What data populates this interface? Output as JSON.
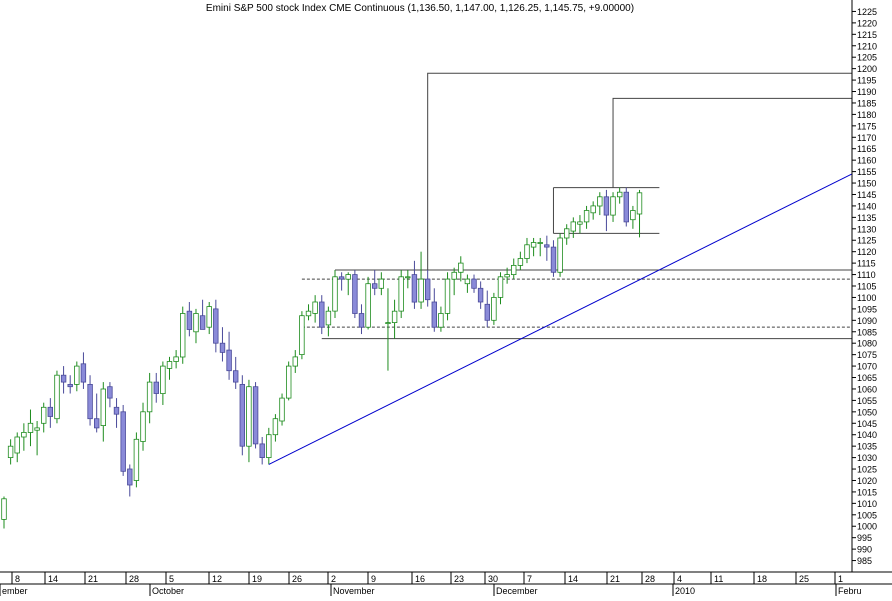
{
  "chart_data": {
    "type": "candlestick",
    "title": "Emini S&P 500 stock Index CME Continuous (1,136.50, 1,147.00, 1,126.25, 1,145.75, +9.00000)",
    "ylim": [
      980,
      1230
    ],
    "y_ticks": [
      985,
      990,
      995,
      1000,
      1005,
      1010,
      1015,
      1020,
      1025,
      1030,
      1035,
      1040,
      1045,
      1050,
      1055,
      1060,
      1065,
      1070,
      1075,
      1080,
      1085,
      1090,
      1095,
      1100,
      1105,
      1110,
      1115,
      1120,
      1125,
      1130,
      1135,
      1140,
      1145,
      1150,
      1155,
      1160,
      1165,
      1170,
      1175,
      1180,
      1185,
      1190,
      1195,
      1200,
      1205,
      1210,
      1215,
      1220,
      1225
    ],
    "x_day_ticks": [
      "8",
      "14",
      "21",
      "28",
      "5",
      "12",
      "19",
      "26",
      "2",
      "9",
      "16",
      "23",
      "30",
      "7",
      "14",
      "21",
      "28",
      "4",
      "11",
      "18",
      "25",
      "1"
    ],
    "x_month_labels": [
      "ember",
      "October",
      "November",
      "December",
      "2010",
      "Febru"
    ],
    "colors": {
      "up_body": "#ffffff",
      "up_edge": "#1e8c1e",
      "down_body": "#8a8ad8",
      "down_edge": "#4a4a9a",
      "trendline": "#0000cc",
      "box": "#444444",
      "axis": "#000000"
    },
    "grid": false,
    "candles": [
      {
        "o": 1003,
        "h": 1013,
        "l": 999,
        "c": 1012
      },
      {
        "o": 1030,
        "h": 1038,
        "l": 1027,
        "c": 1035
      },
      {
        "o": 1032,
        "h": 1041,
        "l": 1028,
        "c": 1039
      },
      {
        "o": 1039,
        "h": 1045,
        "l": 1033,
        "c": 1041
      },
      {
        "o": 1041,
        "h": 1051,
        "l": 1035,
        "c": 1045
      },
      {
        "o": 1042,
        "h": 1046,
        "l": 1031,
        "c": 1043
      },
      {
        "o": 1045,
        "h": 1054,
        "l": 1041,
        "c": 1052
      },
      {
        "o": 1052,
        "h": 1056,
        "l": 1043,
        "c": 1048
      },
      {
        "o": 1047,
        "h": 1068,
        "l": 1045,
        "c": 1066
      },
      {
        "o": 1066,
        "h": 1070,
        "l": 1058,
        "c": 1063
      },
      {
        "o": 1062,
        "h": 1066,
        "l": 1058,
        "c": 1061
      },
      {
        "o": 1062,
        "h": 1072,
        "l": 1059,
        "c": 1070
      },
      {
        "o": 1071,
        "h": 1076,
        "l": 1060,
        "c": 1063
      },
      {
        "o": 1062,
        "h": 1066,
        "l": 1044,
        "c": 1047
      },
      {
        "o": 1047,
        "h": 1058,
        "l": 1041,
        "c": 1043
      },
      {
        "o": 1044,
        "h": 1063,
        "l": 1037,
        "c": 1060
      },
      {
        "o": 1061,
        "h": 1063,
        "l": 1052,
        "c": 1056
      },
      {
        "o": 1052,
        "h": 1056,
        "l": 1043,
        "c": 1049
      },
      {
        "o": 1050,
        "h": 1053,
        "l": 1022,
        "c": 1024
      },
      {
        "o": 1025,
        "h": 1027,
        "l": 1013,
        "c": 1018
      },
      {
        "o": 1020,
        "h": 1041,
        "l": 1017,
        "c": 1038
      },
      {
        "o": 1037,
        "h": 1054,
        "l": 1033,
        "c": 1050
      },
      {
        "o": 1050,
        "h": 1067,
        "l": 1045,
        "c": 1063
      },
      {
        "o": 1063,
        "h": 1067,
        "l": 1054,
        "c": 1058
      },
      {
        "o": 1058,
        "h": 1072,
        "l": 1053,
        "c": 1070
      },
      {
        "o": 1069,
        "h": 1074,
        "l": 1064,
        "c": 1072
      },
      {
        "o": 1072,
        "h": 1077,
        "l": 1069,
        "c": 1074
      },
      {
        "o": 1074,
        "h": 1096,
        "l": 1071,
        "c": 1093
      },
      {
        "o": 1094,
        "h": 1098,
        "l": 1083,
        "c": 1086
      },
      {
        "o": 1085,
        "h": 1095,
        "l": 1080,
        "c": 1093
      },
      {
        "o": 1092,
        "h": 1099,
        "l": 1088,
        "c": 1086
      },
      {
        "o": 1087,
        "h": 1098,
        "l": 1084,
        "c": 1096
      },
      {
        "o": 1095,
        "h": 1099,
        "l": 1076,
        "c": 1080
      },
      {
        "o": 1080,
        "h": 1087,
        "l": 1072,
        "c": 1076
      },
      {
        "o": 1077,
        "h": 1085,
        "l": 1064,
        "c": 1068
      },
      {
        "o": 1068,
        "h": 1074,
        "l": 1060,
        "c": 1063
      },
      {
        "o": 1062,
        "h": 1066,
        "l": 1031,
        "c": 1035
      },
      {
        "o": 1035,
        "h": 1064,
        "l": 1028,
        "c": 1061
      },
      {
        "o": 1061,
        "h": 1063,
        "l": 1034,
        "c": 1036
      },
      {
        "o": 1036,
        "h": 1039,
        "l": 1027,
        "c": 1030
      },
      {
        "o": 1030,
        "h": 1043,
        "l": 1027,
        "c": 1040
      },
      {
        "o": 1040,
        "h": 1049,
        "l": 1037,
        "c": 1047
      },
      {
        "o": 1046,
        "h": 1058,
        "l": 1044,
        "c": 1056
      },
      {
        "o": 1056,
        "h": 1072,
        "l": 1055,
        "c": 1070
      },
      {
        "o": 1070,
        "h": 1077,
        "l": 1067,
        "c": 1074
      },
      {
        "o": 1075,
        "h": 1094,
        "l": 1073,
        "c": 1092
      },
      {
        "o": 1092,
        "h": 1097,
        "l": 1090,
        "c": 1094
      },
      {
        "o": 1093,
        "h": 1101,
        "l": 1089,
        "c": 1098
      },
      {
        "o": 1098,
        "h": 1101,
        "l": 1084,
        "c": 1087
      },
      {
        "o": 1088,
        "h": 1096,
        "l": 1083,
        "c": 1094
      },
      {
        "o": 1094,
        "h": 1112,
        "l": 1091,
        "c": 1109
      },
      {
        "o": 1109,
        "h": 1111,
        "l": 1103,
        "c": 1108
      },
      {
        "o": 1108,
        "h": 1111,
        "l": 1101,
        "c": 1110
      },
      {
        "o": 1110,
        "h": 1112,
        "l": 1091,
        "c": 1093
      },
      {
        "o": 1093,
        "h": 1097,
        "l": 1084,
        "c": 1087
      },
      {
        "o": 1087,
        "h": 1109,
        "l": 1086,
        "c": 1106
      },
      {
        "o": 1106,
        "h": 1112,
        "l": 1101,
        "c": 1104
      },
      {
        "o": 1104,
        "h": 1111,
        "l": 1101,
        "c": 1108
      },
      {
        "o": 1089,
        "h": 1104,
        "l": 1068,
        "c": 1089
      },
      {
        "o": 1089,
        "h": 1099,
        "l": 1082,
        "c": 1094
      },
      {
        "o": 1094,
        "h": 1112,
        "l": 1091,
        "c": 1109
      },
      {
        "o": 1109,
        "h": 1112,
        "l": 1104,
        "c": 1109
      },
      {
        "o": 1110,
        "h": 1116,
        "l": 1095,
        "c": 1098
      },
      {
        "o": 1098,
        "h": 1120,
        "l": 1095,
        "c": 1108
      },
      {
        "o": 1108,
        "h": 1112,
        "l": 1096,
        "c": 1099
      },
      {
        "o": 1098,
        "h": 1104,
        "l": 1085,
        "c": 1087
      },
      {
        "o": 1087,
        "h": 1096,
        "l": 1085,
        "c": 1093
      },
      {
        "o": 1093,
        "h": 1111,
        "l": 1090,
        "c": 1108
      },
      {
        "o": 1108,
        "h": 1113,
        "l": 1101,
        "c": 1111
      },
      {
        "o": 1111,
        "h": 1118,
        "l": 1107,
        "c": 1115
      },
      {
        "o": 1106,
        "h": 1110,
        "l": 1102,
        "c": 1108
      },
      {
        "o": 1108,
        "h": 1110,
        "l": 1102,
        "c": 1104
      },
      {
        "o": 1104,
        "h": 1107,
        "l": 1095,
        "c": 1098
      },
      {
        "o": 1097,
        "h": 1103,
        "l": 1087,
        "c": 1090
      },
      {
        "o": 1090,
        "h": 1102,
        "l": 1088,
        "c": 1100
      },
      {
        "o": 1100,
        "h": 1111,
        "l": 1097,
        "c": 1109
      },
      {
        "o": 1109,
        "h": 1113,
        "l": 1106,
        "c": 1110
      },
      {
        "o": 1110,
        "h": 1117,
        "l": 1108,
        "c": 1114
      },
      {
        "o": 1114,
        "h": 1120,
        "l": 1112,
        "c": 1117
      },
      {
        "o": 1117,
        "h": 1126,
        "l": 1115,
        "c": 1123
      },
      {
        "o": 1122,
        "h": 1126,
        "l": 1118,
        "c": 1124
      },
      {
        "o": 1124,
        "h": 1126,
        "l": 1118,
        "c": 1124
      },
      {
        "o": 1123,
        "h": 1127,
        "l": 1116,
        "c": 1122
      },
      {
        "o": 1122,
        "h": 1125,
        "l": 1109,
        "c": 1111
      },
      {
        "o": 1111,
        "h": 1128,
        "l": 1109,
        "c": 1126
      },
      {
        "o": 1126,
        "h": 1132,
        "l": 1123,
        "c": 1130
      },
      {
        "o": 1129,
        "h": 1135,
        "l": 1126,
        "c": 1133
      },
      {
        "o": 1132,
        "h": 1136,
        "l": 1128,
        "c": 1133
      },
      {
        "o": 1133,
        "h": 1140,
        "l": 1130,
        "c": 1138
      },
      {
        "o": 1137,
        "h": 1142,
        "l": 1134,
        "c": 1140
      },
      {
        "o": 1140,
        "h": 1146,
        "l": 1136,
        "c": 1144
      },
      {
        "o": 1144,
        "h": 1147,
        "l": 1129,
        "c": 1136
      },
      {
        "o": 1136,
        "h": 1146,
        "l": 1133,
        "c": 1144
      },
      {
        "o": 1144,
        "h": 1148,
        "l": 1141,
        "c": 1146
      },
      {
        "o": 1146,
        "h": 1148,
        "l": 1131,
        "c": 1133
      },
      {
        "o": 1134,
        "h": 1140,
        "l": 1130,
        "c": 1138
      },
      {
        "o": 1136.5,
        "h": 1147,
        "l": 1126.25,
        "c": 1145.75
      }
    ],
    "horizontal_lines": [
      {
        "y": 1112,
        "x_from_candle": 50,
        "x_to": "end",
        "style": "solid"
      },
      {
        "y": 1108,
        "x_from_candle": 45,
        "x_to": "end",
        "style": "dashed"
      },
      {
        "y": 1087,
        "x_from_candle": 45,
        "x_to": "end",
        "style": "dashed"
      },
      {
        "y": 1082,
        "x_from_candle": 48,
        "x_to": "end",
        "style": "solid"
      },
      {
        "y": 1148,
        "x_from_candle": 83,
        "x_to_candle": 99,
        "style": "solid"
      },
      {
        "y": 1128,
        "x_from_candle": 83,
        "x_to_candle": 99,
        "style": "solid"
      }
    ],
    "boxes": [
      {
        "y_top": 1198,
        "y_bottom": 1112,
        "x_from_candle": 64
      },
      {
        "y_top": 1187,
        "y_bottom": 1148,
        "x_from_candle": 92
      }
    ],
    "trendline": {
      "from": {
        "candle": 40,
        "price": 1027
      },
      "to": {
        "candle": "right_edge",
        "price": 1154
      }
    },
    "vertical_marker": {
      "candle": 83,
      "y_top": 1128,
      "y_bottom": 1148
    }
  }
}
